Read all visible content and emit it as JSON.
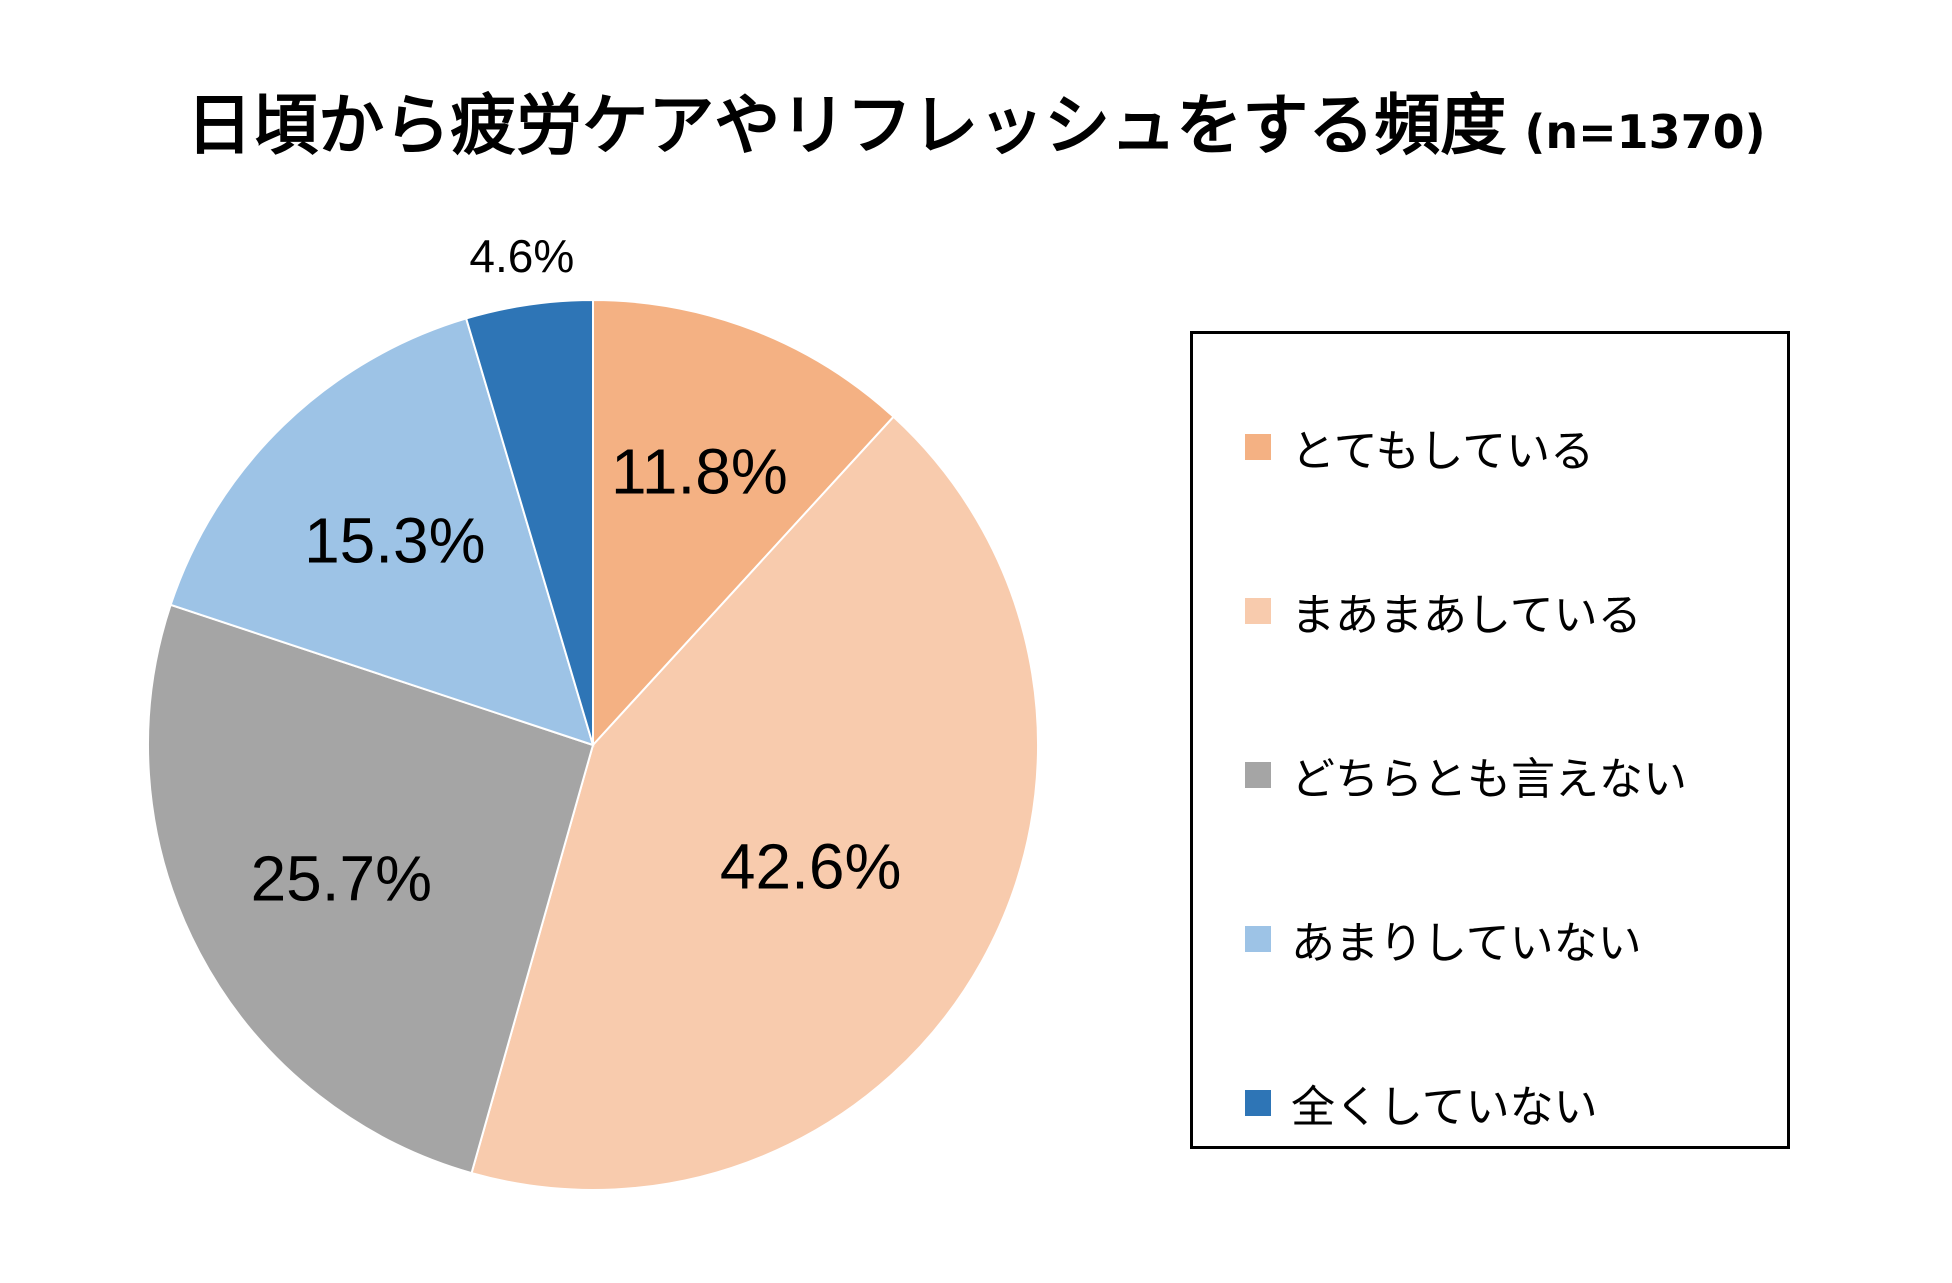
{
  "title": {
    "main": "日頃から疲労ケアやリフレッシュをする頻度",
    "sample": "(n=1370)"
  },
  "chart_data": {
    "type": "pie",
    "start": "12 o'clock",
    "direction": "clockwise",
    "slices": [
      {
        "label": "とてもしている",
        "value": 11.8,
        "display": "11.8%",
        "color": "#F4B183"
      },
      {
        "label": "まあまあしている",
        "value": 42.6,
        "display": "42.6%",
        "color": "#F8CBAD"
      },
      {
        "label": "どちらとも言えない",
        "value": 25.7,
        "display": "25.7%",
        "color": "#A5A5A5"
      },
      {
        "label": "あまりしていない",
        "value": 15.3,
        "display": "15.3%",
        "color": "#9DC3E6"
      },
      {
        "label": "全くしていない",
        "value": 4.6,
        "display": "4.6%",
        "color": "#2E75B6"
      }
    ],
    "legend_position": "right"
  }
}
